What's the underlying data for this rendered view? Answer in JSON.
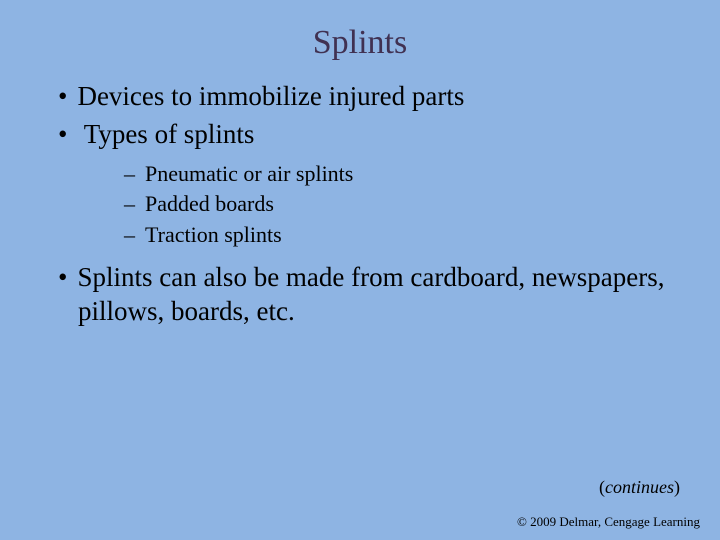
{
  "colors": {
    "background": "#8eb4e3",
    "title_color": "#403152",
    "body_text_color": "#000000"
  },
  "typography": {
    "font_family": "Times New Roman",
    "title_fontsize_pt": 34,
    "level1_fontsize_pt": 27,
    "level2_fontsize_pt": 22,
    "continues_fontsize_pt": 18,
    "copyright_fontsize_pt": 13
  },
  "slide": {
    "title": "Splints",
    "bullets": [
      {
        "text": "Devices to immobilize injured parts"
      },
      {
        "text": "Types of splints",
        "children": [
          "Pneumatic or air splints",
          "Padded boards",
          "Traction splints"
        ]
      },
      {
        "text": "Splints can also be made from cardboard, newspapers, pillows, boards, etc."
      }
    ],
    "continues_open": "(",
    "continues_text": "continues",
    "continues_close": ")",
    "copyright": "© 2009 Delmar, Cengage Learning"
  }
}
